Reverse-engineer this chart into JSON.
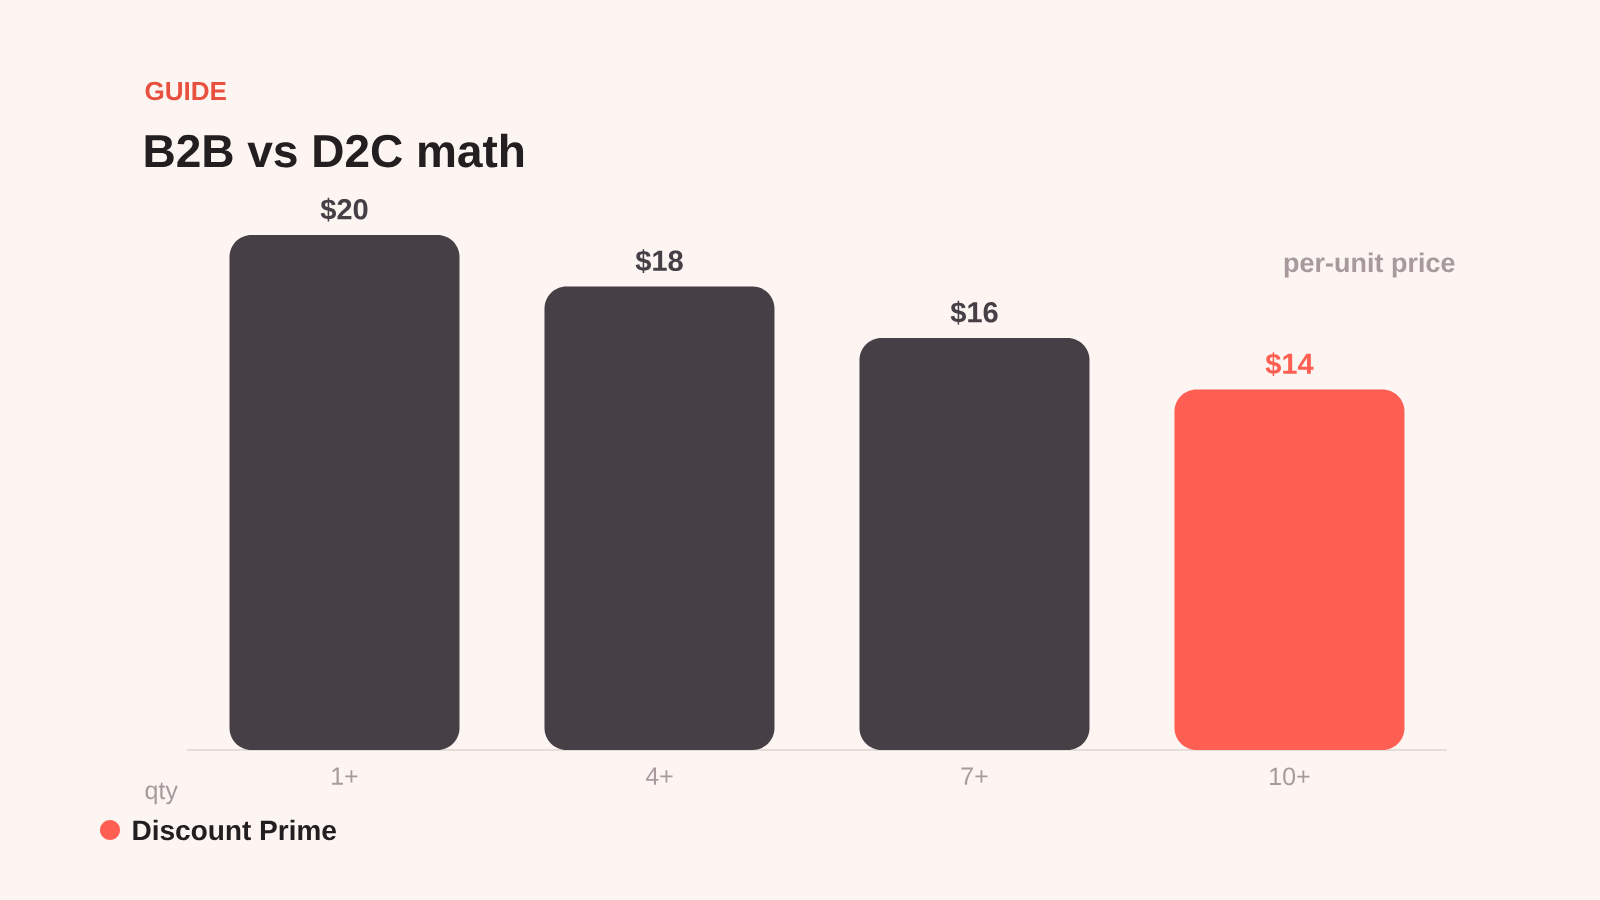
{
  "chart_data": {
    "type": "bar",
    "subtitle": "GUIDE",
    "title": "B2B vs D2C math",
    "xlabel": "qty",
    "ylabel": "per-unit price",
    "categories": [
      "1+",
      "4+",
      "7+",
      "10+"
    ],
    "series": [
      {
        "color": "#463f46",
        "values": [
          20,
          18,
          16,
          null
        ],
        "value_labels": [
          "$20",
          "$18",
          "$16",
          null
        ]
      },
      {
        "name": "Discount Prime",
        "color": "#ff5f52",
        "values": [
          null,
          null,
          null,
          14
        ],
        "value_labels": [
          null,
          null,
          null,
          "$14"
        ]
      }
    ],
    "legend": "bottom left",
    "grid": false
  }
}
